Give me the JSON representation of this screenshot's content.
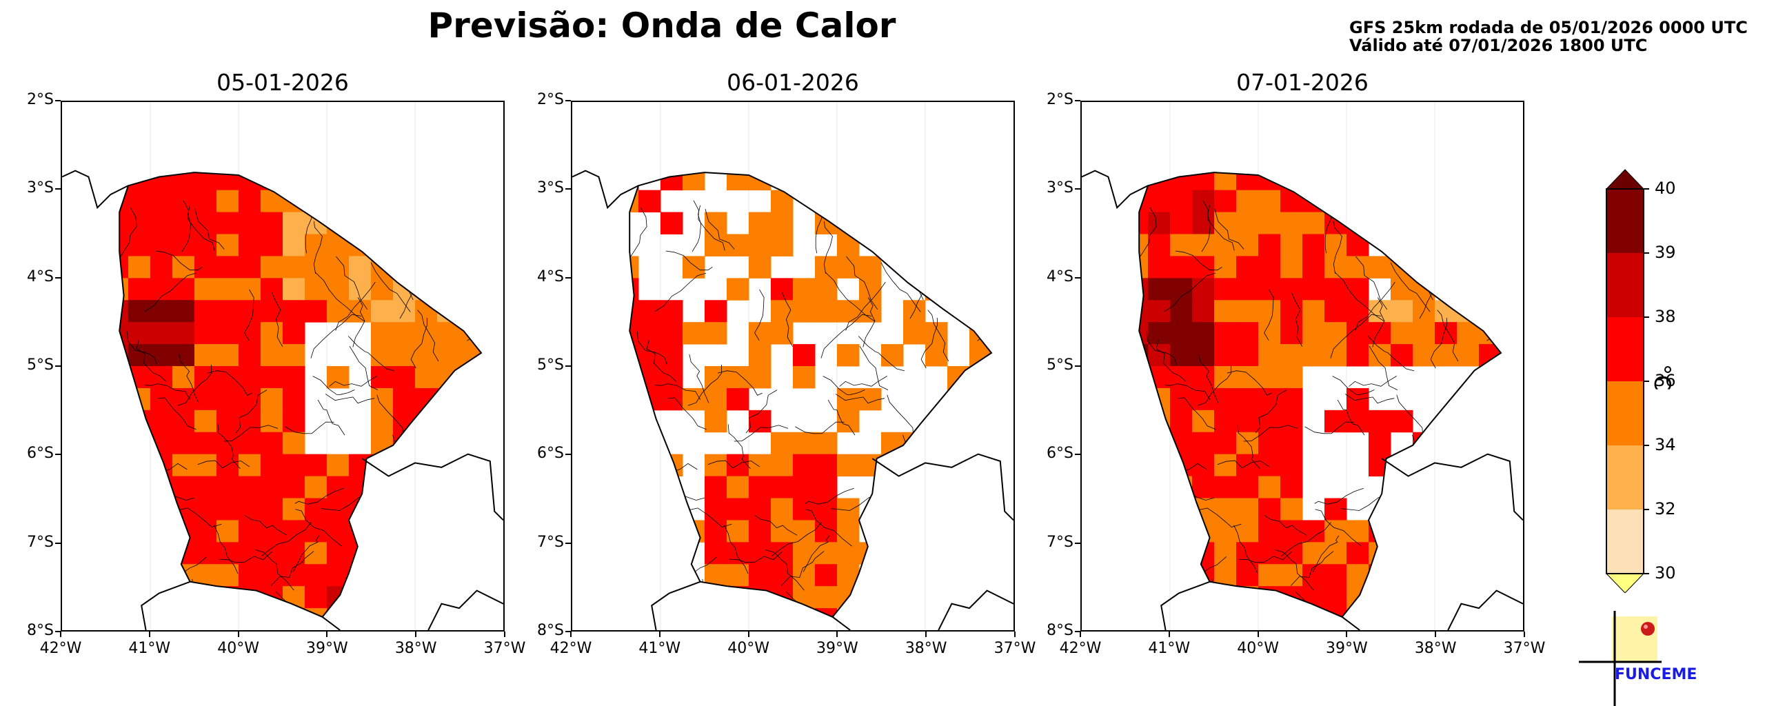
{
  "header": {
    "title": "Previsão: Onda de Calor",
    "run_info": "GFS 25km rodada de 05/01/2026 0000 UTC",
    "valid_info": "Válido até 07/01/2026 1800 UTC"
  },
  "panels": [
    {
      "date": "05-01-2026"
    },
    {
      "date": "06-01-2026"
    },
    {
      "date": "07-01-2026"
    }
  ],
  "axes": {
    "lat_labels": [
      "2°S",
      "3°S",
      "4°S",
      "5°S",
      "6°S",
      "7°S",
      "8°S"
    ],
    "lon_labels": [
      "42°W",
      "41°W",
      "40°W",
      "39°W",
      "38°W",
      "37°W"
    ],
    "lat_range": [
      -8,
      -2
    ],
    "lon_range": [
      -42,
      -37
    ]
  },
  "colorbar": {
    "unit": "°C",
    "levels": [
      "30",
      "32",
      "34",
      "36",
      "38",
      "39",
      "40"
    ],
    "colors": [
      "#fde0b5",
      "#fdb04c",
      "#fd7f00",
      "#fe0000",
      "#cc0000",
      "#800000"
    ],
    "under_color": "#ffff80",
    "over_color": "#6b0000",
    "extend": "both"
  },
  "logo": {
    "text": "FUNCEME",
    "color": "#1a1ae6"
  },
  "map_palette": {
    "state_border": "#000000",
    "municipal_border": "#000000",
    "no_data": "#ffffff"
  }
}
